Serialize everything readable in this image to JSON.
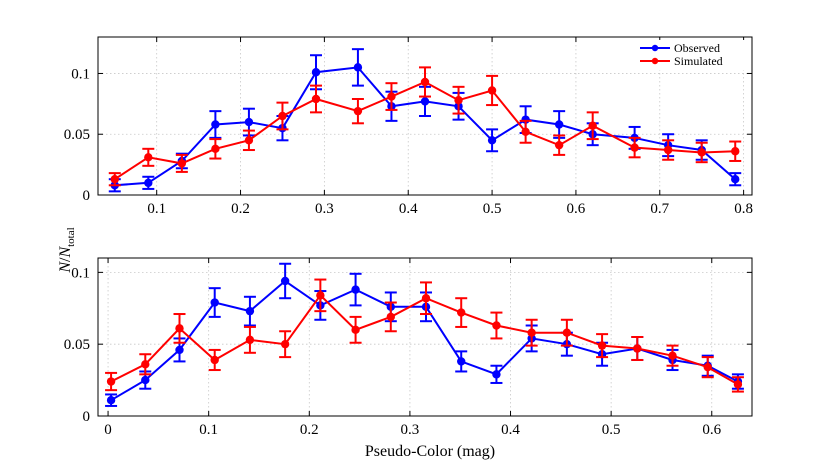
{
  "chart_data": [
    {
      "type": "line",
      "panel": "top",
      "xlim": [
        0.03,
        0.81
      ],
      "ylim": [
        0,
        0.13
      ],
      "xticks": [
        0.1,
        0.2,
        0.3,
        0.4,
        0.5,
        0.6,
        0.7,
        0.8
      ],
      "xtick_labels": [
        "0.1",
        "0.2",
        "0.3",
        "0.4",
        "0.5",
        "0.6",
        "0.7",
        "0.8"
      ],
      "yticks": [
        0,
        0.05,
        0.1
      ],
      "ytick_labels": [
        "0",
        "0.05",
        "0.1"
      ],
      "grid": true,
      "legend_position": "top-right",
      "legend": [
        "Observed",
        "Simulated"
      ],
      "series": [
        {
          "name": "Observed",
          "color": "#0000ff",
          "x": [
            0.05,
            0.09,
            0.13,
            0.17,
            0.21,
            0.25,
            0.29,
            0.34,
            0.38,
            0.42,
            0.46,
            0.5,
            0.54,
            0.58,
            0.62,
            0.67,
            0.71,
            0.75,
            0.79
          ],
          "y": [
            0.008,
            0.01,
            0.028,
            0.058,
            0.06,
            0.055,
            0.101,
            0.105,
            0.073,
            0.077,
            0.073,
            0.045,
            0.062,
            0.058,
            0.05,
            0.047,
            0.041,
            0.037,
            0.013
          ],
          "err": [
            0.005,
            0.005,
            0.006,
            0.011,
            0.011,
            0.01,
            0.014,
            0.015,
            0.012,
            0.012,
            0.011,
            0.009,
            0.011,
            0.011,
            0.009,
            0.009,
            0.009,
            0.008,
            0.005
          ]
        },
        {
          "name": "Simulated",
          "color": "#ff0000",
          "x": [
            0.05,
            0.09,
            0.13,
            0.17,
            0.21,
            0.25,
            0.29,
            0.34,
            0.38,
            0.42,
            0.46,
            0.5,
            0.54,
            0.58,
            0.62,
            0.67,
            0.71,
            0.75,
            0.79
          ],
          "y": [
            0.013,
            0.031,
            0.026,
            0.038,
            0.045,
            0.065,
            0.079,
            0.069,
            0.081,
            0.093,
            0.078,
            0.086,
            0.052,
            0.041,
            0.057,
            0.039,
            0.037,
            0.035,
            0.036
          ],
          "err": [
            0.005,
            0.007,
            0.007,
            0.008,
            0.008,
            0.011,
            0.011,
            0.01,
            0.011,
            0.012,
            0.011,
            0.012,
            0.009,
            0.008,
            0.011,
            0.008,
            0.008,
            0.008,
            0.008
          ]
        }
      ]
    },
    {
      "type": "line",
      "panel": "bottom",
      "xlim": [
        -0.01,
        0.64
      ],
      "ylim": [
        0,
        0.11
      ],
      "xticks": [
        0,
        0.1,
        0.2,
        0.3,
        0.4,
        0.5,
        0.6
      ],
      "xtick_labels": [
        "0",
        "0.1",
        "0.2",
        "0.3",
        "0.4",
        "0.5",
        "0.6"
      ],
      "yticks": [
        0,
        0.05,
        0.1
      ],
      "ytick_labels": [
        "0",
        "0.05",
        "0.1"
      ],
      "grid": true,
      "xlabel": "Pseudo-Color (mag)",
      "series": [
        {
          "name": "Observed",
          "color": "#0000ff",
          "x": [
            0.003,
            0.037,
            0.071,
            0.106,
            0.141,
            0.176,
            0.211,
            0.246,
            0.281,
            0.316,
            0.351,
            0.386,
            0.421,
            0.456,
            0.491,
            0.526,
            0.561,
            0.596,
            0.626
          ],
          "y": [
            0.011,
            0.025,
            0.046,
            0.079,
            0.073,
            0.094,
            0.077,
            0.088,
            0.076,
            0.076,
            0.038,
            0.029,
            0.054,
            0.05,
            0.043,
            0.047,
            0.039,
            0.035,
            0.024
          ],
          "err": [
            0.004,
            0.006,
            0.008,
            0.01,
            0.01,
            0.012,
            0.01,
            0.011,
            0.01,
            0.01,
            0.007,
            0.006,
            0.009,
            0.008,
            0.008,
            0.008,
            0.007,
            0.007,
            0.005
          ]
        },
        {
          "name": "Simulated",
          "color": "#ff0000",
          "x": [
            0.003,
            0.037,
            0.071,
            0.106,
            0.141,
            0.176,
            0.211,
            0.246,
            0.281,
            0.316,
            0.351,
            0.386,
            0.421,
            0.456,
            0.491,
            0.526,
            0.561,
            0.596,
            0.626
          ],
          "y": [
            0.024,
            0.036,
            0.061,
            0.039,
            0.053,
            0.05,
            0.084,
            0.06,
            0.069,
            0.082,
            0.072,
            0.063,
            0.058,
            0.058,
            0.049,
            0.047,
            0.042,
            0.034,
            0.022
          ],
          "err": [
            0.006,
            0.007,
            0.01,
            0.007,
            0.009,
            0.009,
            0.011,
            0.009,
            0.01,
            0.011,
            0.01,
            0.009,
            0.009,
            0.009,
            0.008,
            0.008,
            0.007,
            0.007,
            0.005
          ]
        }
      ]
    }
  ],
  "ylabel": {
    "italic_N": "N",
    "slash": "/",
    "italic_N2": "N",
    "subscript": "total"
  }
}
